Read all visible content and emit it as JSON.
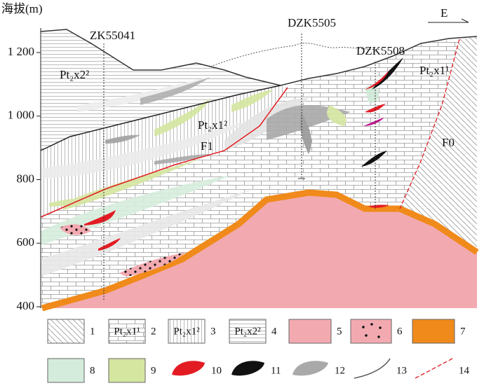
{
  "axis": {
    "title": "海拔(m)",
    "ticks": [
      {
        "value": 1200,
        "label": "1 200"
      },
      {
        "value": 1000,
        "label": "1 000"
      },
      800,
      600,
      400
    ]
  },
  "direction": "E",
  "drill_holes": [
    "ZK55041",
    "DZK5505",
    "DZK5508"
  ],
  "units": [
    "Pt₂x2²",
    "Pt₂x1²",
    "Pt₂x1¹"
  ],
  "faults": [
    "F1",
    "F0"
  ],
  "legend": [
    {
      "number": "1"
    },
    {
      "number": "2",
      "label": "Pt₂x1¹"
    },
    {
      "number": "3",
      "label": "Pt₂x1²"
    },
    {
      "number": "4",
      "label": "Pt₂x2²"
    },
    {
      "number": "5"
    },
    {
      "number": "6"
    },
    {
      "number": "7"
    },
    {
      "number": "8"
    },
    {
      "number": "9"
    },
    {
      "number": "10"
    },
    {
      "number": "11"
    },
    {
      "number": "12"
    },
    {
      "number": "13"
    },
    {
      "number": "14"
    }
  ]
}
